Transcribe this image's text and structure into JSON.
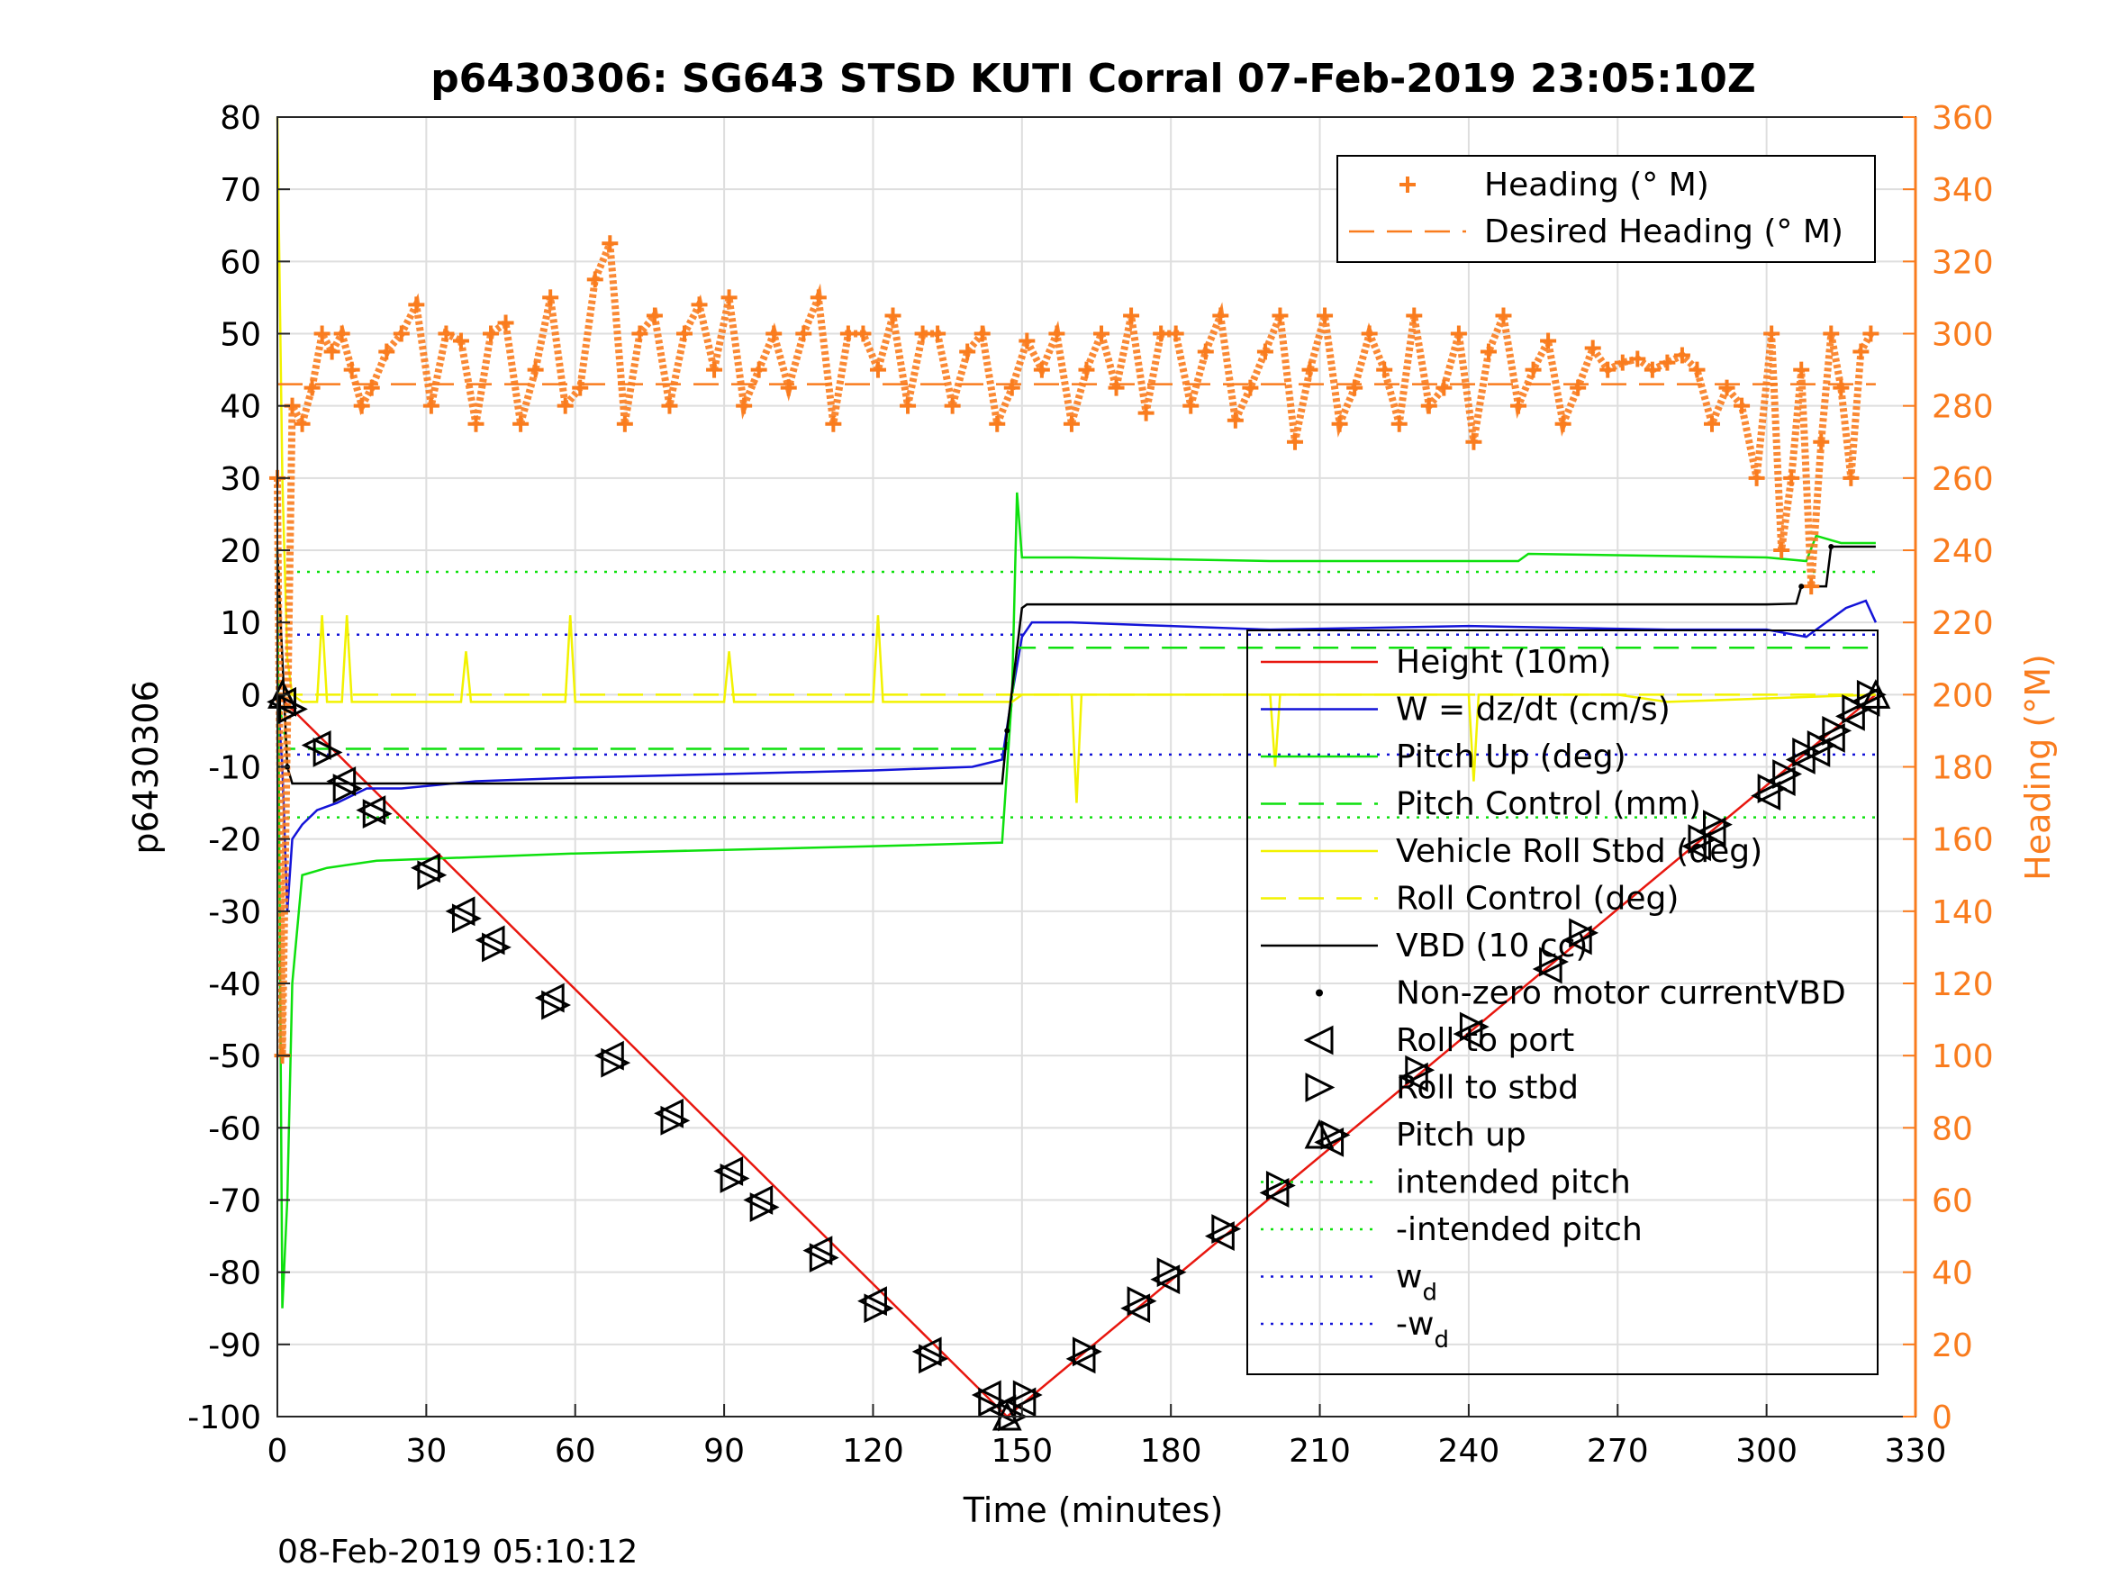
{
  "footer_timestamp": "08-Feb-2019 05:10:12",
  "chart_data": {
    "type": "line",
    "title": "p6430306: SG643 STSD KUTI Corral 07-Feb-2019 23:05:10Z",
    "xlabel": "Time (minutes)",
    "ylabel": "p6430306",
    "ylabel_right": "Heading (°M)",
    "xlim": [
      0,
      330
    ],
    "ylim": [
      -100,
      80
    ],
    "ylim_right": [
      0,
      360
    ],
    "xticks": [
      "0",
      "30",
      "60",
      "90",
      "120",
      "150",
      "180",
      "210",
      "240",
      "270",
      "300",
      "330"
    ],
    "yticks": [
      "-100",
      "-90",
      "-80",
      "-70",
      "-60",
      "-50",
      "-40",
      "-30",
      "-20",
      "-10",
      "0",
      "10",
      "20",
      "30",
      "40",
      "50",
      "60",
      "70",
      "80"
    ],
    "yticks_right": [
      "0",
      "20",
      "40",
      "60",
      "80",
      "100",
      "120",
      "140",
      "160",
      "180",
      "200",
      "220",
      "240",
      "260",
      "280",
      "300",
      "320",
      "340",
      "360"
    ],
    "grid": true,
    "colors": {
      "heading": "#f97c1e",
      "height": "#e8170f",
      "w": "#1414d8",
      "pitch": "#0ee00e",
      "roll": "#f2f200",
      "vbd": "#000000"
    },
    "legend_heading": [
      {
        "label": "Heading (° M)",
        "marker": "plus",
        "color": "#f97c1e"
      },
      {
        "label": "Desired Heading (° M)",
        "marker": "dash",
        "color": "#f97c1e"
      }
    ],
    "legend_main": [
      {
        "label": "Height (10m)",
        "marker": "line",
        "color": "#e8170f"
      },
      {
        "label": "W = dz/dt (cm/s)",
        "marker": "line",
        "color": "#1414d8"
      },
      {
        "label": "Pitch Up (deg)",
        "marker": "line",
        "color": "#0ee00e"
      },
      {
        "label": "Pitch Control (mm)",
        "marker": "dash",
        "color": "#0ee00e"
      },
      {
        "label": "Vehicle Roll Stbd (deg)",
        "marker": "line",
        "color": "#f2f200"
      },
      {
        "label": "Roll Control (deg)",
        "marker": "dash",
        "color": "#f2f200"
      },
      {
        "label": "VBD (10 cc)",
        "marker": "line",
        "color": "#000000"
      },
      {
        "label": "Non-zero motor currentVBD",
        "marker": "dot",
        "color": "#000000"
      },
      {
        "label": "Roll to port",
        "marker": "tri-left",
        "color": "#000000"
      },
      {
        "label": "Roll to stbd",
        "marker": "tri-right",
        "color": "#000000"
      },
      {
        "label": "Pitch up",
        "marker": "tri-up",
        "color": "#000000"
      },
      {
        "label": "intended pitch",
        "marker": "dot-line",
        "color": "#0ee00e"
      },
      {
        "label": "-intended pitch",
        "marker": "dot-line",
        "color": "#0ee00e"
      },
      {
        "label": "w",
        "sub": "d",
        "marker": "dot-line",
        "color": "#1414d8"
      },
      {
        "label": "-w",
        "sub": "d",
        "marker": "dot-line",
        "color": "#1414d8"
      }
    ],
    "series": [
      {
        "name": "Height (10m)",
        "axis": "left",
        "x": [
          0,
          147,
          322
        ],
        "y": [
          0,
          -100,
          0
        ]
      },
      {
        "name": "W = dz/dt (cm/s)",
        "axis": "left",
        "x": [
          0,
          1,
          2,
          3,
          5,
          8,
          12,
          18,
          25,
          40,
          60,
          90,
          120,
          140,
          146,
          148,
          150,
          152,
          160,
          180,
          200,
          240,
          280,
          300,
          308,
          312,
          316,
          320,
          322
        ],
        "y": [
          0,
          -10,
          -30,
          -20,
          -18,
          -16,
          -15,
          -13,
          -13,
          -12,
          -11.5,
          -11,
          -10.5,
          -10,
          -9,
          0,
          8,
          10,
          10,
          9.5,
          9,
          9.5,
          9,
          9,
          8,
          10,
          12,
          13,
          10
        ]
      },
      {
        "name": "Pitch Up (deg)",
        "axis": "left",
        "x": [
          0,
          1,
          2,
          3,
          5,
          10,
          20,
          40,
          60,
          90,
          120,
          146,
          148,
          149,
          150,
          160,
          200,
          250,
          252,
          300,
          308,
          310,
          315,
          322
        ],
        "y": [
          20,
          -85,
          -70,
          -40,
          -25,
          -24,
          -23,
          -22.5,
          -22,
          -21.5,
          -21,
          -20.5,
          0,
          28,
          19,
          19,
          18.5,
          18.5,
          19.5,
          19,
          18.5,
          22,
          21,
          21
        ]
      },
      {
        "name": "Pitch Control (mm)",
        "axis": "left",
        "x": [
          0,
          2,
          147,
          149,
          322
        ],
        "y": [
          0,
          -7.5,
          -7.5,
          6.5,
          6.5
        ]
      },
      {
        "name": "Vehicle Roll Stbd (deg)",
        "axis": "left",
        "x": [
          0,
          1,
          2,
          3,
          5,
          8,
          9,
          10,
          13,
          14,
          15,
          20,
          37,
          38,
          39,
          58,
          59,
          60,
          90,
          91,
          92,
          120,
          121,
          122,
          148,
          150,
          160,
          161,
          162,
          200,
          201,
          202,
          240,
          241,
          242,
          270,
          280,
          322
        ],
        "y": [
          80,
          30,
          5,
          0,
          -1,
          -1,
          11,
          -1,
          -1,
          11,
          -1,
          -1,
          -1,
          6,
          -1,
          -1,
          11,
          -1,
          -1,
          6,
          -1,
          -1,
          11,
          -1,
          -1,
          0,
          0,
          -15,
          0,
          0,
          -10,
          0,
          0,
          -12,
          0,
          0,
          -1,
          0
        ]
      },
      {
        "name": "Roll Control (deg)",
        "axis": "left",
        "x": [
          0,
          322
        ],
        "y": [
          0,
          0
        ]
      },
      {
        "name": "VBD (10 cc)",
        "axis": "left",
        "x": [
          0,
          2,
          3,
          146,
          147,
          150,
          151,
          300,
          306,
          307,
          312,
          313,
          322
        ],
        "y": [
          20,
          -10,
          -12.3,
          -12.3,
          -5,
          12,
          12.5,
          12.5,
          12.6,
          15,
          15,
          20.5,
          20.5
        ]
      },
      {
        "name": "Heading (° M)",
        "axis": "right",
        "marker": "plus",
        "x": [
          0,
          1,
          3,
          5,
          7,
          9,
          11,
          13,
          15,
          17,
          19,
          22,
          25,
          28,
          31,
          34,
          37,
          40,
          43,
          46,
          49,
          52,
          55,
          58,
          61,
          64,
          67,
          70,
          73,
          76,
          79,
          82,
          85,
          88,
          91,
          94,
          97,
          100,
          103,
          106,
          109,
          112,
          115,
          118,
          121,
          124,
          127,
          130,
          133,
          136,
          139,
          142,
          145,
          148,
          151,
          154,
          157,
          160,
          163,
          166,
          169,
          172,
          175,
          178,
          181,
          184,
          187,
          190,
          193,
          196,
          199,
          202,
          205,
          208,
          211,
          214,
          217,
          220,
          223,
          226,
          229,
          232,
          235,
          238,
          241,
          244,
          247,
          250,
          253,
          256,
          259,
          262,
          265,
          268,
          271,
          274,
          277,
          280,
          283,
          286,
          289,
          292,
          295,
          298,
          301,
          303,
          305,
          307,
          309,
          311,
          313,
          315,
          317,
          319,
          321
        ],
        "y": [
          260,
          100,
          280,
          275,
          285,
          300,
          295,
          300,
          290,
          280,
          285,
          295,
          300,
          308,
          280,
          300,
          298,
          275,
          300,
          303,
          275,
          290,
          310,
          280,
          285,
          315,
          325,
          275,
          300,
          305,
          280,
          300,
          308,
          290,
          310,
          280,
          290,
          300,
          285,
          300,
          310,
          275,
          300,
          300,
          290,
          305,
          280,
          300,
          300,
          280,
          295,
          300,
          275,
          285,
          298,
          290,
          300,
          275,
          290,
          300,
          285,
          305,
          278,
          300,
          300,
          280,
          295,
          305,
          276,
          285,
          295,
          305,
          270,
          290,
          305,
          275,
          285,
          300,
          290,
          275,
          305,
          280,
          285,
          300,
          270,
          295,
          305,
          280,
          290,
          298,
          275,
          285,
          296,
          290,
          292,
          293,
          290,
          292,
          294,
          290,
          275,
          285,
          280,
          260,
          300,
          240,
          260,
          290,
          230,
          270,
          300,
          285,
          260,
          295,
          300
        ]
      },
      {
        "name": "Desired Heading (° M)",
        "axis": "right",
        "x": [
          0,
          322
        ],
        "y": [
          286,
          286
        ]
      },
      {
        "name": "intended pitch",
        "axis": "left",
        "x": [
          0,
          322
        ],
        "y": [
          17,
          17
        ]
      },
      {
        "name": "-intended pitch",
        "axis": "left",
        "x": [
          0,
          322
        ],
        "y": [
          -17,
          -17
        ]
      },
      {
        "name": "w_d",
        "axis": "left",
        "x": [
          0,
          322
        ],
        "y": [
          8.3,
          8.3
        ]
      },
      {
        "name": "-w_d",
        "axis": "left",
        "x": [
          0,
          322
        ],
        "y": [
          -8.3,
          -8.3
        ]
      },
      {
        "name": "Non-zero motor currentVBD",
        "axis": "left",
        "marker": "dot",
        "x": [
          2,
          147,
          307,
          313
        ],
        "y": [
          -10,
          -5,
          15,
          20.5
        ]
      },
      {
        "name": "Roll to port",
        "axis": "left",
        "marker": "tri-left",
        "x": [
          1,
          8,
          13,
          19,
          30,
          37,
          43,
          55,
          67,
          79,
          91,
          97,
          109,
          120,
          131,
          143,
          146,
          150,
          162,
          173,
          179,
          190,
          201,
          212,
          229,
          240,
          256,
          262,
          286,
          289,
          300,
          303,
          307,
          310,
          313,
          317,
          320
        ],
        "y": [
          -1,
          -7,
          -12,
          -16,
          -24,
          -30,
          -34,
          -42,
          -50,
          -58,
          -66,
          -70,
          -77,
          -84,
          -91,
          -97,
          -99,
          -98,
          -92,
          -85,
          -81,
          -75,
          -69,
          -62,
          -53,
          -47,
          -38,
          -34,
          -21,
          -19,
          -14,
          -12,
          -9,
          -8,
          -6,
          -3,
          -1
        ]
      },
      {
        "name": "Roll to stbd",
        "axis": "left",
        "marker": "tri-right",
        "x": [
          3,
          10,
          14,
          20,
          31,
          38,
          44,
          56,
          68,
          80,
          92,
          98,
          110,
          121,
          132,
          144,
          148,
          151,
          163,
          174,
          180,
          191,
          202,
          213,
          230,
          241,
          257,
          263,
          287,
          290,
          301,
          304,
          308,
          311,
          314,
          318,
          321
        ],
        "y": [
          -2,
          -8,
          -13,
          -16.5,
          -25,
          -31,
          -35,
          -43,
          -51,
          -59,
          -67,
          -71,
          -78,
          -85,
          -92,
          -98,
          -100,
          -97,
          -91,
          -84,
          -80,
          -74,
          -68,
          -61,
          -52,
          -46,
          -37,
          -33,
          -20,
          -18,
          -13,
          -11,
          -8,
          -7,
          -5,
          -2,
          0
        ]
      },
      {
        "name": "Pitch up",
        "axis": "left",
        "marker": "tri-up",
        "x": [
          1,
          147,
          322
        ],
        "y": [
          0,
          -100,
          0
        ]
      }
    ]
  }
}
